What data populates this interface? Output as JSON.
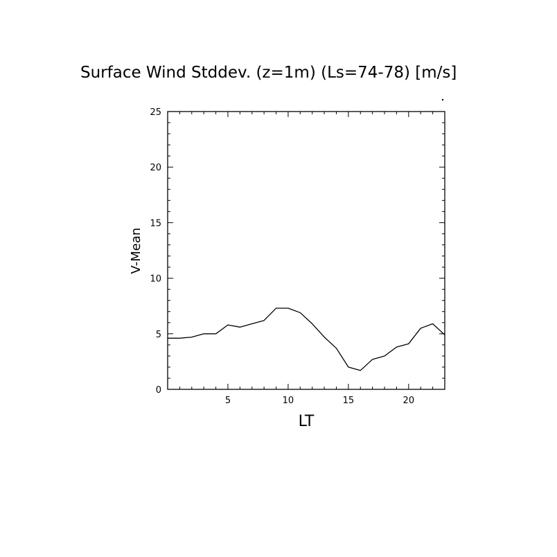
{
  "chart_data": {
    "type": "line",
    "title": "Surface Wind Stddev. (z=1m) (Ls=74-78) [m/s]",
    "xlabel": "LT",
    "ylabel": "V-Mean",
    "xlim": [
      0,
      23
    ],
    "ylim": [
      0,
      25
    ],
    "xticks_major": [
      5,
      10,
      15,
      20
    ],
    "yticks_major": [
      0,
      5,
      10,
      15,
      20,
      25
    ],
    "grid": false,
    "series": [
      {
        "color": "#000000",
        "x": [
          0,
          1,
          2,
          3,
          4,
          5,
          6,
          7,
          8,
          9,
          10,
          11,
          12,
          13,
          14,
          15,
          16,
          17,
          18,
          19,
          20,
          21,
          22,
          23
        ],
        "y": [
          4.6,
          4.6,
          4.7,
          5.0,
          5.0,
          5.8,
          5.6,
          5.9,
          6.2,
          7.3,
          7.3,
          6.9,
          5.9,
          4.7,
          3.7,
          2.0,
          1.7,
          2.7,
          3.0,
          3.8,
          4.1,
          5.5,
          5.9,
          4.9
        ]
      }
    ]
  }
}
